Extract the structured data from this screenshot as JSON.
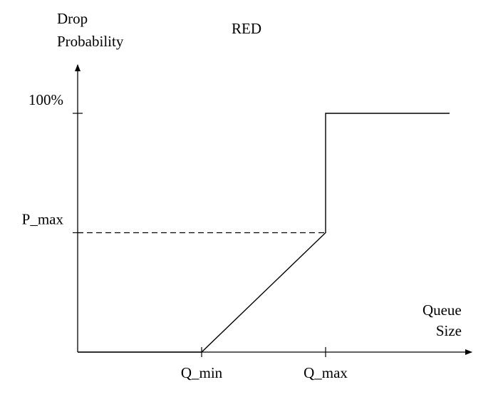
{
  "chart_data": {
    "type": "line",
    "title": "RED",
    "ylabel": [
      "Drop",
      "Probability"
    ],
    "xlabel": [
      "Queue",
      "Size"
    ],
    "x_ticks": [
      {
        "label": "Q_min",
        "value": 1
      },
      {
        "label": "Q_max",
        "value": 2
      }
    ],
    "y_ticks": [
      {
        "label": "P_max",
        "value": 1
      },
      {
        "label": "100%",
        "value": 2
      }
    ],
    "xlim": [
      0,
      3
    ],
    "ylim": [
      0,
      2
    ],
    "series": [
      {
        "x": [
          0,
          1,
          2,
          2,
          3
        ],
        "y": [
          0,
          0,
          1,
          2,
          2
        ]
      }
    ],
    "reference_lines": [
      {
        "style": "dashed",
        "x": [
          0,
          2
        ],
        "y": [
          1,
          1
        ]
      }
    ],
    "grid": false,
    "colors": {
      "line": "#000000",
      "background": "#ffffff"
    }
  }
}
